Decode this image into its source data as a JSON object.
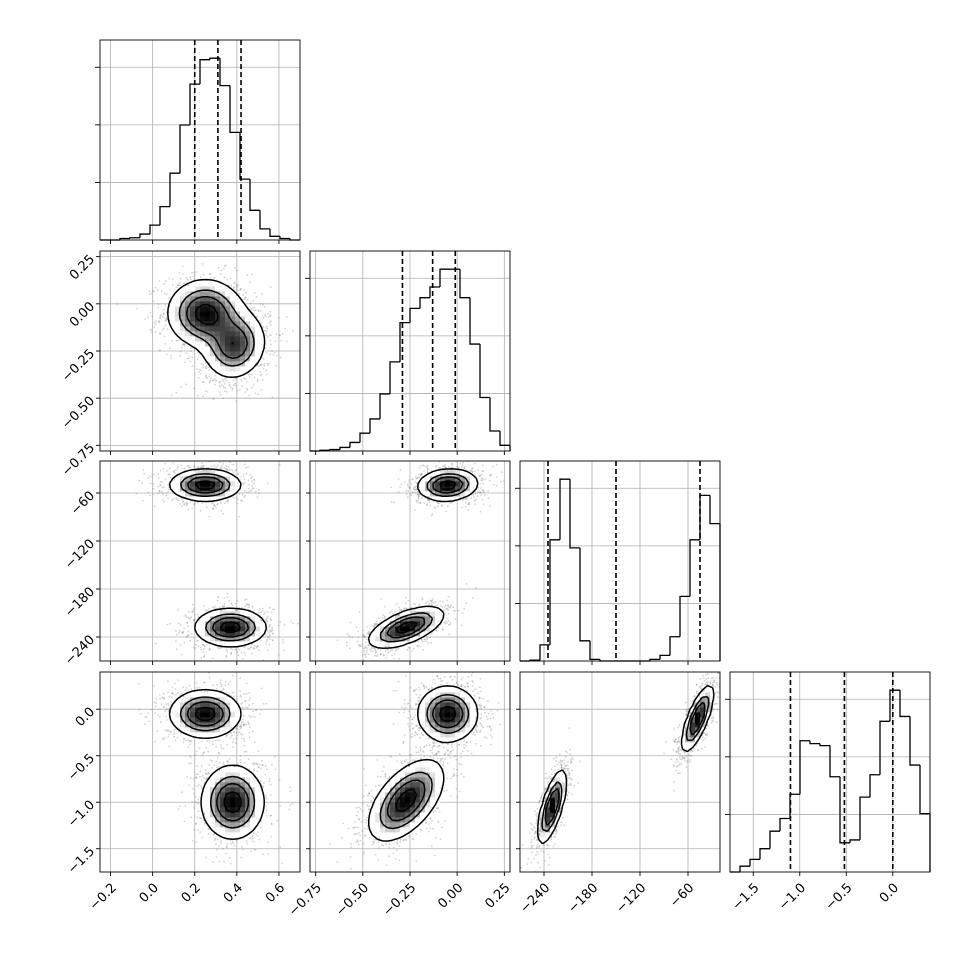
{
  "chart_data": {
    "type": "corner",
    "grid": true,
    "parameters": [
      {
        "index": 0,
        "range": [
          -0.25,
          0.7
        ],
        "ticks": [
          -0.2,
          0.0,
          0.2,
          0.4,
          0.6
        ],
        "tick_labels": [
          "−0.2",
          "0.0",
          "0.2",
          "0.4",
          "0.6"
        ]
      },
      {
        "index": 1,
        "range": [
          -0.78,
          0.28
        ],
        "ticks": [
          -0.75,
          -0.5,
          -0.25,
          0.0,
          0.25
        ],
        "tick_labels": [
          "−0.75",
          "−0.50",
          "−0.25",
          "0.00",
          "0.25"
        ]
      },
      {
        "index": 2,
        "range": [
          -270,
          -20
        ],
        "ticks": [
          -240,
          -180,
          -120,
          -60
        ],
        "tick_labels": [
          "−240",
          "−180",
          "−120",
          "−60"
        ]
      },
      {
        "index": 3,
        "range": [
          -1.75,
          0.4
        ],
        "ticks": [
          -1.5,
          -1.0,
          -0.5,
          0.0
        ],
        "tick_labels": [
          "−1.5",
          "−1.0",
          "−0.5",
          "0.0"
        ]
      }
    ],
    "histograms": [
      {
        "parameter": 0,
        "quantiles": [
          0.2,
          0.31,
          0.42
        ],
        "bin_edges": [
          -0.25,
          -0.2025,
          -0.155,
          -0.1075,
          -0.06,
          -0.0125,
          0.035,
          0.0825,
          0.13,
          0.1775,
          0.225,
          0.2725,
          0.32,
          0.3675,
          0.415,
          0.4625,
          0.51,
          0.5575,
          0.605,
          0.6525,
          0.7
        ],
        "counts": [
          0,
          0,
          2,
          3,
          8,
          20,
          45,
          90,
          155,
          210,
          243,
          245,
          208,
          145,
          82,
          40,
          15,
          5,
          2,
          0
        ]
      },
      {
        "parameter": 1,
        "quantiles": [
          -0.29,
          -0.13,
          -0.01
        ],
        "bin_edges": [
          -0.78,
          -0.727,
          -0.674,
          -0.621,
          -0.568,
          -0.515,
          -0.462,
          -0.409,
          -0.356,
          -0.303,
          -0.25,
          -0.197,
          -0.144,
          -0.091,
          -0.038,
          0.015,
          0.068,
          0.121,
          0.174,
          0.227,
          0.28
        ],
        "counts": [
          0,
          1,
          2,
          5,
          12,
          25,
          45,
          80,
          125,
          180,
          200,
          215,
          230,
          255,
          255,
          215,
          150,
          75,
          28,
          8
        ]
      },
      {
        "parameter": 2,
        "quantiles": [
          -235,
          -150,
          -45
        ],
        "bin_edges": [
          -270,
          -257.5,
          -245,
          -232.5,
          -220,
          -207.5,
          -195,
          -182.5,
          -170,
          -157.5,
          -145,
          -132.5,
          -120,
          -107.5,
          -95,
          -82.5,
          -70,
          -57.5,
          -45,
          -32.5,
          -20
        ],
        "counts": [
          0,
          1,
          20,
          150,
          225,
          140,
          25,
          2,
          0,
          0,
          0,
          0,
          0,
          2,
          7,
          30,
          80,
          150,
          205,
          170
        ]
      },
      {
        "parameter": 3,
        "quantiles": [
          -1.1,
          -0.52,
          0.0
        ],
        "bin_edges": [
          -1.75,
          -1.6425,
          -1.535,
          -1.4275,
          -1.32,
          -1.2125,
          -1.105,
          -0.9975,
          -0.89,
          -0.7825,
          -0.675,
          -0.5675,
          -0.46,
          -0.3525,
          -0.245,
          -0.1375,
          -0.03,
          0.0775,
          0.185,
          0.2925,
          0.4
        ],
        "counts": [
          0,
          6,
          13,
          24,
          42,
          55,
          80,
          135,
          132,
          130,
          98,
          30,
          33,
          77,
          100,
          155,
          187,
          160,
          110,
          60
        ]
      }
    ],
    "densities": [
      {
        "x": 0,
        "y": 1,
        "modes": [
          {
            "cx": 0.25,
            "cy": -0.05,
            "sx": 0.09,
            "sy": 0.09,
            "rho": 0.0,
            "w": 0.55
          },
          {
            "cx": 0.39,
            "cy": -0.22,
            "sx": 0.075,
            "sy": 0.09,
            "rho": 0.1,
            "w": 0.45
          }
        ]
      },
      {
        "x": 0,
        "y": 2,
        "modes": [
          {
            "cx": 0.25,
            "cy": -50,
            "sx": 0.085,
            "sy": 10,
            "rho": 0.0,
            "w": 0.5
          },
          {
            "cx": 0.37,
            "cy": -228,
            "sx": 0.085,
            "sy": 12,
            "rho": 0.0,
            "w": 0.5
          }
        ]
      },
      {
        "x": 0,
        "y": 3,
        "modes": [
          {
            "cx": 0.25,
            "cy": -0.05,
            "sx": 0.085,
            "sy": 0.13,
            "rho": 0.0,
            "w": 0.5
          },
          {
            "cx": 0.38,
            "cy": -1.0,
            "sx": 0.075,
            "sy": 0.2,
            "rho": 0.0,
            "w": 0.5
          }
        ]
      },
      {
        "x": 1,
        "y": 2,
        "modes": [
          {
            "cx": -0.05,
            "cy": -50,
            "sx": 0.08,
            "sy": 10,
            "rho": 0.1,
            "w": 0.5
          },
          {
            "cx": -0.27,
            "cy": -228,
            "sx": 0.1,
            "sy": 13,
            "rho": 0.6,
            "w": 0.5
          }
        ]
      },
      {
        "x": 1,
        "y": 3,
        "modes": [
          {
            "cx": -0.05,
            "cy": -0.05,
            "sx": 0.08,
            "sy": 0.15,
            "rho": 0.0,
            "w": 0.5
          },
          {
            "cx": -0.27,
            "cy": -0.98,
            "sx": 0.1,
            "sy": 0.22,
            "rho": 0.55,
            "w": 0.5
          }
        ]
      },
      {
        "x": 2,
        "y": 3,
        "modes": [
          {
            "cx": -48,
            "cy": -0.1,
            "sx": 10,
            "sy": 0.18,
            "rho": 0.75,
            "w": 0.5
          },
          {
            "cx": -230,
            "cy": -1.05,
            "sx": 9,
            "sy": 0.2,
            "rho": 0.7,
            "w": 0.5
          }
        ]
      }
    ]
  }
}
